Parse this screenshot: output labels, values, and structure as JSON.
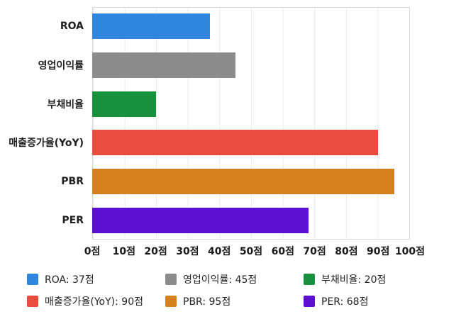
{
  "chart_data": {
    "type": "bar",
    "orientation": "horizontal",
    "title": "",
    "xlabel": "",
    "ylabel": "",
    "categories": [
      "ROA",
      "영업이익률",
      "부채비율",
      "매출증가율(YoY)",
      "PBR",
      "PER"
    ],
    "values": [
      37,
      45,
      20,
      90,
      95,
      68
    ],
    "unit": "점",
    "colors": [
      "#2f87dd",
      "#8c8c8c",
      "#17913d",
      "#e74c3c",
      "#d5821c",
      "#5c10d2"
    ],
    "x_ticks": [
      "0점",
      "10점",
      "20점",
      "30점",
      "40점",
      "50점",
      "60점",
      "70점",
      "80점",
      "90점",
      "100점"
    ],
    "xlim": [
      0,
      100
    ],
    "grid": true,
    "legend_position": "bottom"
  },
  "legend": {
    "items": [
      {
        "label": "ROA: 37점",
        "color": "#2f87dd"
      },
      {
        "label": "영업이익률: 45점",
        "color": "#8c8c8c"
      },
      {
        "label": "부채비율: 20점",
        "color": "#17913d"
      },
      {
        "label": "매출증가율(YoY): 90점",
        "color": "#e74c3c"
      },
      {
        "label": "PBR: 95점",
        "color": "#d5821c"
      },
      {
        "label": "PER: 68점",
        "color": "#5c10d2"
      }
    ]
  }
}
